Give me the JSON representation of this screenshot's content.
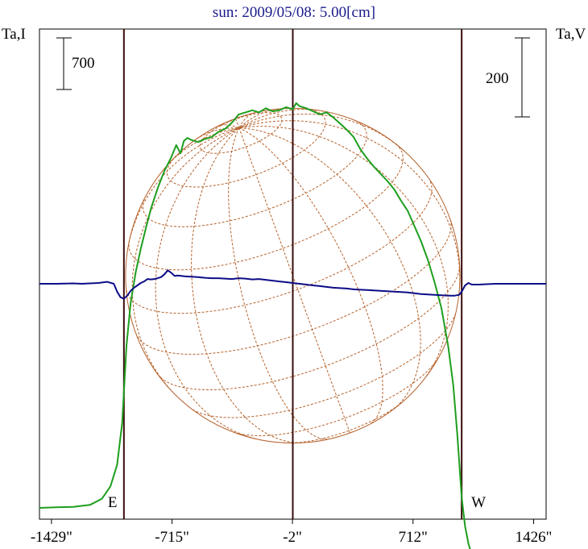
{
  "chart_data": {
    "type": "line",
    "title": "sun: 2009/05/08: 5.00[cm]",
    "left_axis_label": "Ta,I",
    "right_axis_label": "Ta,V",
    "left_scale_bar_label": "700",
    "right_scale_bar_label": "200",
    "xlim": [
      -1500,
      1500
    ],
    "x_ticks": [
      -1429,
      -715,
      -2,
      712,
      1426
    ],
    "x_tick_labels": [
      "-1429\"",
      "-715\"",
      "-2\"",
      "712\"",
      "1426\""
    ],
    "limb_markers": [
      {
        "label": "E",
        "x": -1000
      },
      {
        "label": "W",
        "x": 1000
      }
    ],
    "center_line_x": 0,
    "disk": {
      "center_x": 0,
      "radius_arcsec": 990
    },
    "colors": {
      "intensity": "#1e9e1e",
      "polarization": "#0c0c88",
      "disk": "#b5622c",
      "markers": "#3a0c0c"
    },
    "series": [
      {
        "name": "Ta,I",
        "axis": "left",
        "color": "#1e9e1e",
        "x": [
          -1500,
          -1400,
          -1300,
          -1200,
          -1130,
          -1080,
          -1040,
          -1010,
          -985,
          -960,
          -930,
          -900,
          -870,
          -840,
          -800,
          -760,
          -720,
          -690,
          -665,
          -645,
          -625,
          -600,
          -560,
          -520,
          -480,
          -440,
          -400,
          -360,
          -320,
          -280,
          -240,
          -200,
          -160,
          -120,
          -80,
          -40,
          0,
          20,
          40,
          80,
          120,
          160,
          200,
          240,
          280,
          320,
          360,
          400,
          440,
          480,
          520,
          560,
          600,
          640,
          680,
          720,
          760,
          800,
          840,
          880,
          920,
          950,
          975,
          1000,
          1020,
          1040,
          1070,
          1100,
          1150,
          1200,
          1250,
          1300,
          1400,
          1500
        ],
        "y": [
          0,
          6,
          10,
          30,
          90,
          210,
          420,
          830,
          1580,
          2000,
          2300,
          2530,
          2730,
          2920,
          3120,
          3290,
          3420,
          3540,
          3460,
          3580,
          3610,
          3590,
          3570,
          3600,
          3620,
          3670,
          3700,
          3760,
          3840,
          3860,
          3880,
          3860,
          3900,
          3870,
          3880,
          3910,
          3890,
          3950,
          3920,
          3900,
          3870,
          3840,
          3860,
          3810,
          3750,
          3690,
          3620,
          3500,
          3410,
          3330,
          3260,
          3190,
          3110,
          3000,
          2900,
          2750,
          2600,
          2420,
          2200,
          1950,
          1580,
          1200,
          700,
          100,
          -180,
          -350,
          -510,
          -560,
          -600,
          -620,
          -630,
          -640,
          -650,
          -660
        ]
      },
      {
        "name": "Ta,V",
        "axis": "right",
        "color": "#0c0c88",
        "x": [
          -1500,
          -1400,
          -1300,
          -1250,
          -1200,
          -1150,
          -1100,
          -1060,
          -1040,
          -1020,
          -1000,
          -980,
          -960,
          -940,
          -920,
          -900,
          -880,
          -860,
          -840,
          -820,
          -800,
          -780,
          -760,
          -740,
          -720,
          -700,
          -680,
          -660,
          -640,
          -600,
          -560,
          -520,
          -480,
          -440,
          -400,
          -360,
          -320,
          -280,
          -240,
          -200,
          -160,
          -120,
          -80,
          -40,
          0,
          40,
          80,
          120,
          160,
          200,
          240,
          280,
          320,
          360,
          400,
          440,
          480,
          520,
          560,
          600,
          640,
          680,
          720,
          760,
          800,
          840,
          880,
          920,
          960,
          985,
          1000,
          1020,
          1040,
          1060,
          1100,
          1150,
          1200,
          1300,
          1400,
          1500
        ],
        "y": [
          0,
          0,
          1,
          0,
          1,
          2,
          5,
          0,
          -20,
          -34,
          -38,
          -30,
          -18,
          -10,
          -4,
          2,
          6,
          12,
          11,
          12,
          14,
          17,
          24,
          34,
          28,
          20,
          21,
          20,
          19,
          18,
          17,
          15,
          14,
          14,
          13,
          12,
          14,
          13,
          11,
          12,
          10,
          8,
          6,
          4,
          2,
          0,
          -2,
          -4,
          -6,
          -8,
          -10,
          -11,
          -12,
          -14,
          -15,
          -16,
          -17,
          -18,
          -19,
          -20,
          -21,
          -22,
          -24,
          -26,
          -27,
          -28,
          -29,
          -30,
          -30,
          -28,
          -20,
          -4,
          2,
          -2,
          -2,
          -1,
          0,
          0,
          0,
          0
        ]
      }
    ]
  }
}
